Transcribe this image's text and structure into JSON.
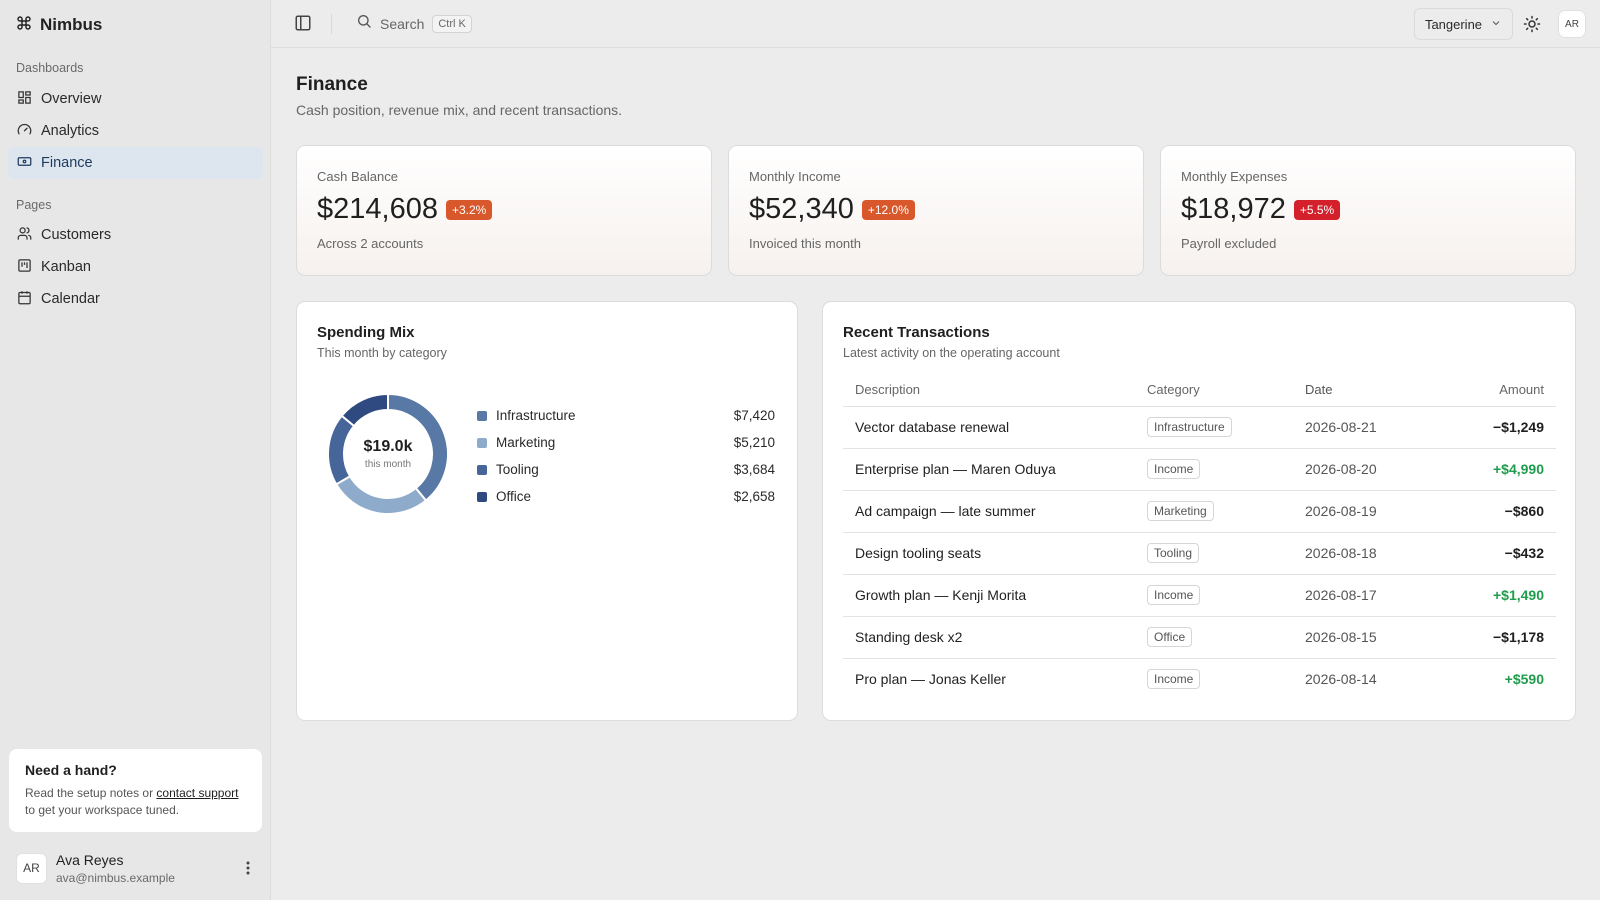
{
  "app": {
    "name": "Nimbus"
  },
  "sidebar": {
    "sections": [
      {
        "label": "Dashboards",
        "items": [
          {
            "label": "Overview",
            "icon": "grid-icon",
            "active": false
          },
          {
            "label": "Analytics",
            "icon": "gauge-icon",
            "active": false
          },
          {
            "label": "Finance",
            "icon": "banknote-icon",
            "active": true
          }
        ]
      },
      {
        "label": "Pages",
        "items": [
          {
            "label": "Customers",
            "icon": "users-icon",
            "active": false
          },
          {
            "label": "Kanban",
            "icon": "kanban-icon",
            "active": false
          },
          {
            "label": "Calendar",
            "icon": "calendar-icon",
            "active": false
          }
        ]
      }
    ],
    "help": {
      "title": "Need a hand?",
      "text_before": "Read the setup notes or ",
      "link": "contact support",
      "text_after": " to get your workspace tuned."
    },
    "user": {
      "initials": "AR",
      "name": "Ava Reyes",
      "email": "ava@nimbus.example"
    }
  },
  "topbar": {
    "search_label": "Search",
    "search_shortcut": "Ctrl K",
    "theme": "Tangerine",
    "avatar_initials": "AR"
  },
  "page": {
    "title": "Finance",
    "subtitle": "Cash position, revenue mix, and recent transactions."
  },
  "stats": [
    {
      "label": "Cash Balance",
      "value": "$214,608",
      "badge": "+3.2%",
      "badge_color": "#d9582b",
      "foot": "Across 2 accounts"
    },
    {
      "label": "Monthly Income",
      "value": "$52,340",
      "badge": "+12.0%",
      "badge_color": "#d9582b",
      "foot": "Invoiced this month"
    },
    {
      "label": "Monthly Expenses",
      "value": "$18,972",
      "badge": "+5.5%",
      "badge_color": "#d4202a",
      "foot": "Payroll excluded"
    }
  ],
  "spending": {
    "title": "Spending Mix",
    "subtitle": "This month by category",
    "center_value": "$19.0k",
    "center_caption": "this month",
    "categories": [
      {
        "name": "Infrastructure",
        "value": "$7,420",
        "amount": 7420,
        "color": "#5878a6"
      },
      {
        "name": "Marketing",
        "value": "$5,210",
        "amount": 5210,
        "color": "#8fabcc"
      },
      {
        "name": "Tooling",
        "value": "$3,684",
        "amount": 3684,
        "color": "#46669a"
      },
      {
        "name": "Office",
        "value": "$2,658",
        "amount": 2658,
        "color": "#2f4a80"
      }
    ]
  },
  "transactions": {
    "title": "Recent Transactions",
    "subtitle": "Latest activity on the operating account",
    "columns": [
      "Description",
      "Category",
      "Date",
      "Amount"
    ],
    "rows": [
      {
        "description": "Vector database renewal",
        "category": "Infrastructure",
        "date": "2026-08-21",
        "amount": "−$1,249",
        "positive": false
      },
      {
        "description": "Enterprise plan — Maren Oduya",
        "category": "Income",
        "date": "2026-08-20",
        "amount": "+$4,990",
        "positive": true
      },
      {
        "description": "Ad campaign — late summer",
        "category": "Marketing",
        "date": "2026-08-19",
        "amount": "−$860",
        "positive": false
      },
      {
        "description": "Design tooling seats",
        "category": "Tooling",
        "date": "2026-08-18",
        "amount": "−$432",
        "positive": false
      },
      {
        "description": "Growth plan — Kenji Morita",
        "category": "Income",
        "date": "2026-08-17",
        "amount": "+$1,490",
        "positive": true
      },
      {
        "description": "Standing desk x2",
        "category": "Office",
        "date": "2026-08-15",
        "amount": "−$1,178",
        "positive": false
      },
      {
        "description": "Pro plan — Jonas Keller",
        "category": "Income",
        "date": "2026-08-14",
        "amount": "+$590",
        "positive": true
      }
    ]
  },
  "colors": {
    "positive": "#1f9d4c",
    "negative": "#1f1f1f",
    "active_nav_bg": "#dde6ef",
    "accent": "#d9582b"
  }
}
